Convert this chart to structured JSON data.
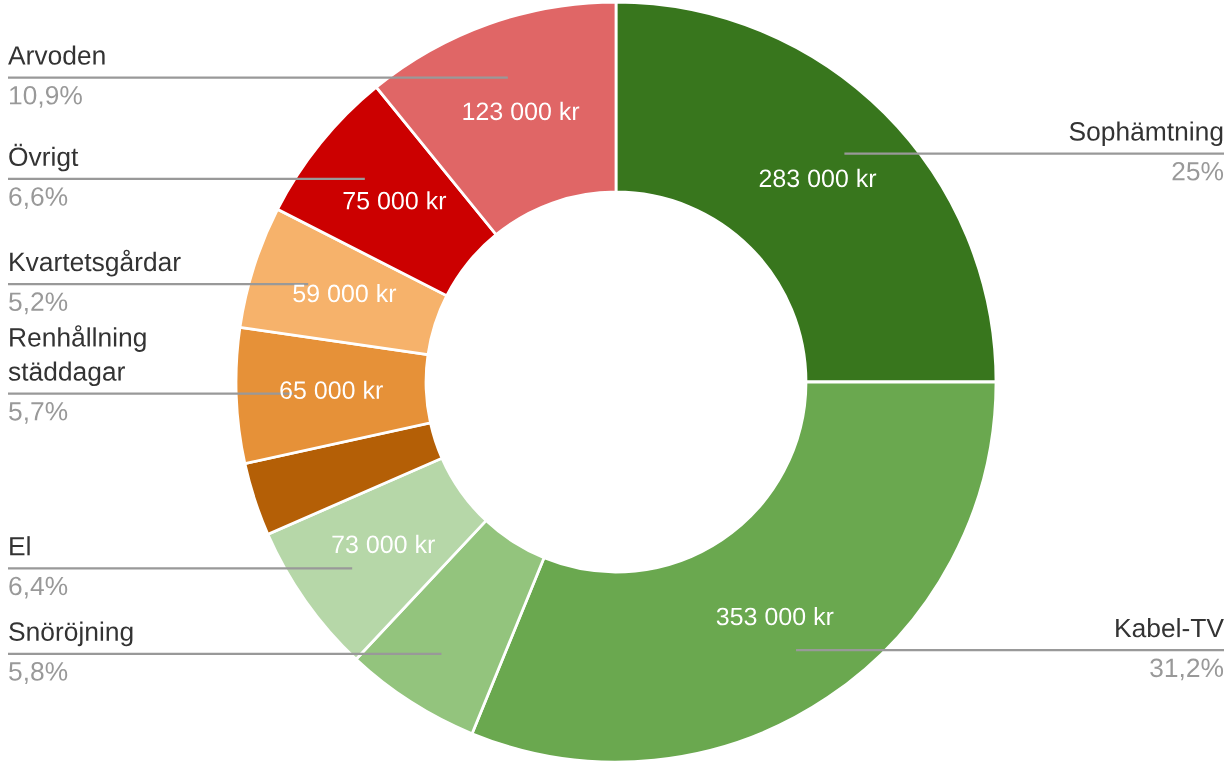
{
  "chart_data": {
    "type": "donut",
    "categories": [
      "Sophämtning",
      "Kabel-TV",
      "Snöröjning",
      "El",
      null,
      "Renhållning\nstäddagar",
      "Kvartetsgårdar",
      "Övrigt",
      "Arvoden"
    ],
    "values": [
      283000,
      353000,
      65700,
      73000,
      35300,
      65000,
      59000,
      75000,
      123000
    ],
    "colors": [
      "#38761d",
      "#6aa84f",
      "#93c47d",
      "#b6d7a8",
      "#b45f06",
      "#e69138",
      "#f6b26b",
      "#cc0000",
      "#e06666"
    ],
    "value_labels": [
      "283 000 kr",
      "353 000 kr",
      null,
      "73 000 kr",
      null,
      "65 000 kr",
      "59 000 kr",
      "75 000 kr",
      "123 000 kr"
    ],
    "annotations": [
      {
        "text": "25%",
        "x": "Sophämtning"
      },
      {
        "text": "31,2%",
        "x": "Kabel-TV"
      },
      {
        "text": "5,8%",
        "x": "Snöröjning"
      },
      {
        "text": "6,4%",
        "x": "El"
      },
      {
        "text": "5,7%",
        "x": "Renhållning\nstäddagar"
      },
      {
        "text": "5,2%",
        "x": "Kvartetsgårdar"
      },
      {
        "text": "6,6%",
        "x": "Övrigt"
      },
      {
        "text": "10,9%",
        "x": "Arvoden"
      }
    ]
  }
}
